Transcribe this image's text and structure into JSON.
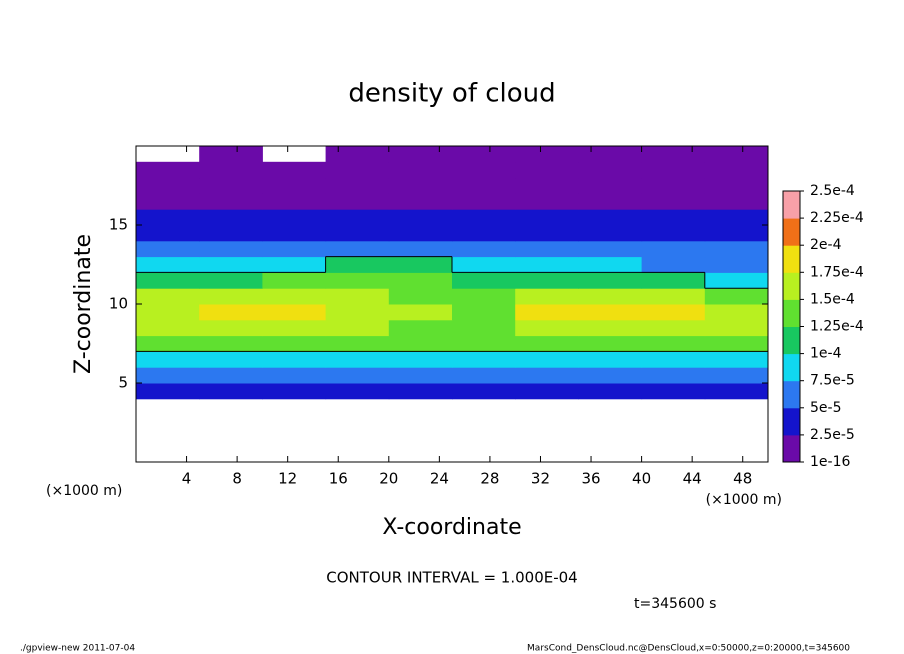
{
  "chart_data": {
    "type": "heatmap",
    "title": "density of cloud",
    "x_label": "X-coordinate",
    "y_label": "Z-coordinate",
    "x_unit_left": "(×1000 m)",
    "x_unit_right": "(×1000 m)",
    "xlim": [
      0,
      50
    ],
    "ylim": [
      0,
      20
    ],
    "xticks": [
      4,
      8,
      12,
      16,
      20,
      24,
      28,
      32,
      36,
      40,
      44,
      48
    ],
    "yticks": [
      5,
      10,
      15
    ],
    "x_edges": [
      0,
      5,
      10,
      15,
      20,
      25,
      30,
      35,
      40,
      45,
      50
    ],
    "z_edges": [
      0,
      1,
      2,
      3,
      4,
      5,
      6,
      7,
      8,
      9,
      10,
      11,
      12,
      13,
      14,
      15,
      16,
      17,
      18,
      19,
      20
    ],
    "values": [
      [
        null,
        null,
        null,
        null,
        null,
        null,
        null,
        null,
        null,
        null
      ],
      [
        null,
        null,
        null,
        null,
        null,
        null,
        null,
        null,
        null,
        null
      ],
      [
        null,
        null,
        null,
        null,
        null,
        null,
        null,
        null,
        null,
        null
      ],
      [
        null,
        null,
        null,
        null,
        null,
        null,
        null,
        null,
        null,
        null
      ],
      [
        3e-05,
        3e-05,
        3e-05,
        3e-05,
        3e-05,
        3e-05,
        3e-05,
        3e-05,
        3e-05,
        3e-05
      ],
      [
        6e-05,
        6e-05,
        6e-05,
        6e-05,
        6e-05,
        6e-05,
        6e-05,
        6e-05,
        6e-05,
        6e-05
      ],
      [
        9e-05,
        9.5e-05,
        9.5e-05,
        9e-05,
        9e-05,
        9e-05,
        9.5e-05,
        9.5e-05,
        9.5e-05,
        9e-05
      ],
      [
        0.00013,
        0.000135,
        0.000135,
        0.00013,
        0.00013,
        0.00013,
        0.000135,
        0.00014,
        0.00014,
        0.00013
      ],
      [
        0.00016,
        0.00017,
        0.00017,
        0.00016,
        0.00014,
        0.00014,
        0.00016,
        0.00017,
        0.00017,
        0.00016
      ],
      [
        0.00017,
        0.00018,
        0.00019,
        0.00017,
        0.00015,
        0.00014,
        0.00018,
        0.00019,
        0.00019,
        0.00017
      ],
      [
        0.00015,
        0.00016,
        0.00016,
        0.00015,
        0.00014,
        0.00013,
        0.00015,
        0.00016,
        0.00016,
        0.00014
      ],
      [
        0.00012,
        0.00012,
        0.00013,
        0.00013,
        0.00013,
        0.00012,
        0.00011,
        0.0001,
        0.0001,
        9e-05
      ],
      [
        8e-05,
        9e-05,
        9.5e-05,
        0.000105,
        0.0001,
        9e-05,
        8e-05,
        7.5e-05,
        7e-05,
        7e-05
      ],
      [
        6e-05,
        6e-05,
        6.5e-05,
        7e-05,
        6.5e-05,
        6e-05,
        5.5e-05,
        5.5e-05,
        5e-05,
        5.5e-05
      ],
      [
        4e-05,
        4e-05,
        4e-05,
        4.5e-05,
        4e-05,
        4e-05,
        4e-05,
        3.5e-05,
        3e-05,
        4e-05
      ],
      [
        3e-05,
        3e-05,
        3e-05,
        3e-05,
        3e-05,
        3e-05,
        3e-05,
        3e-05,
        2.5e-05,
        3e-05
      ],
      [
        2.2e-05,
        2.2e-05,
        2.2e-05,
        2.2e-05,
        2.2e-05,
        2.2e-05,
        2.2e-05,
        2.2e-05,
        2.2e-05,
        2.2e-05
      ],
      [
        1.2e-05,
        1.2e-05,
        1.2e-05,
        1.2e-05,
        1.2e-05,
        1.2e-05,
        1.2e-05,
        1.2e-05,
        1.2e-05,
        1.2e-05
      ],
      [
        3e-06,
        3e-06,
        3e-06,
        3e-06,
        3e-06,
        3e-06,
        3e-06,
        3e-06,
        3e-06,
        3e-06
      ],
      [
        null,
        3e-06,
        null,
        3e-06,
        3e-06,
        3e-06,
        3e-06,
        3e-06,
        3e-06,
        3e-06
      ]
    ],
    "levels": [
      {
        "value": 1e-16,
        "label": "1e-16"
      },
      {
        "value": 2.5e-05,
        "label": "2.5e-5"
      },
      {
        "value": 5e-05,
        "label": "5e-5"
      },
      {
        "value": 7.5e-05,
        "label": "7.5e-5"
      },
      {
        "value": 0.0001,
        "label": "1e-4"
      },
      {
        "value": 0.000125,
        "label": "1.25e-4"
      },
      {
        "value": 0.00015,
        "label": "1.5e-4"
      },
      {
        "value": 0.000175,
        "label": "1.75e-4"
      },
      {
        "value": 0.0002,
        "label": "2e-4"
      },
      {
        "value": 0.000225,
        "label": "2.25e-4"
      },
      {
        "value": 0.00025,
        "label": "2.5e-4"
      }
    ],
    "colors": [
      "#6a0aa8",
      "#1414cc",
      "#2c78f0",
      "#10d8f0",
      "#18c860",
      "#60e030",
      "#b8f020",
      "#f0e010",
      "#f07018",
      "#f8a0a8"
    ],
    "contour_level": 0.0001,
    "contour_label": "CONTOUR INTERVAL = 1.000E-04",
    "time_label": "t=345600 s",
    "footer_left": "./gpview-new  2011-07-04",
    "footer_right": "MarsCond_DensCloud.nc@DensCloud,x=0:50000,z=0:20000,t=345600"
  }
}
